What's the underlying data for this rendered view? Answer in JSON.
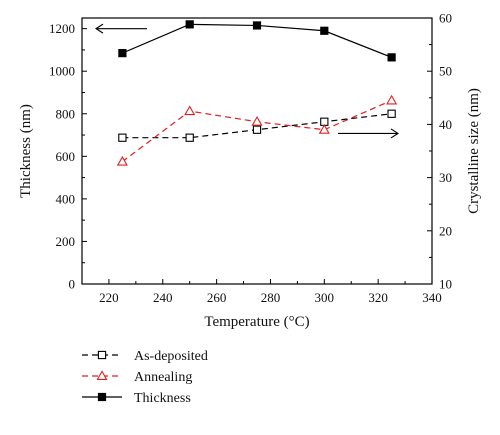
{
  "chart_data": {
    "type": "line",
    "x": [
      225,
      250,
      275,
      300,
      325
    ],
    "xlabel": "Temperature (°C)",
    "ylabel_left": "Thickness (nm)",
    "ylabel_right": "Crystalline size (nm)",
    "xlim": [
      210,
      340
    ],
    "xticks": [
      220,
      240,
      260,
      280,
      300,
      320,
      340
    ],
    "ylim_left": [
      0,
      1250
    ],
    "yticks_left": [
      0,
      200,
      400,
      600,
      800,
      1000,
      1200
    ],
    "ylim_right": [
      10,
      60
    ],
    "yticks_right": [
      10,
      20,
      30,
      40,
      50,
      60
    ],
    "grid": false,
    "legend_position": "below the plot",
    "series": [
      {
        "name": "As-deposited",
        "axis": "right",
        "values": [
          37.5,
          37.5,
          39,
          40.5,
          42
        ],
        "color": "#000000",
        "line": "dashed",
        "marker": "open-square"
      },
      {
        "name": "Annealing",
        "axis": "right",
        "values": [
          33,
          42.5,
          40.5,
          39,
          44.5
        ],
        "color": "#e02020",
        "line": "dashed",
        "marker": "open-triangle"
      },
      {
        "name": "Thickness",
        "axis": "left",
        "values": [
          1085,
          1220,
          1215,
          1190,
          1065
        ],
        "color": "#000000",
        "line": "solid",
        "marker": "filled-square"
      }
    ],
    "annotations": [
      {
        "type": "arrow",
        "direction": "left",
        "meaning": "Thickness series uses left axis"
      },
      {
        "type": "arrow",
        "direction": "right",
        "meaning": "As-deposited and Annealing use right axis"
      }
    ]
  }
}
